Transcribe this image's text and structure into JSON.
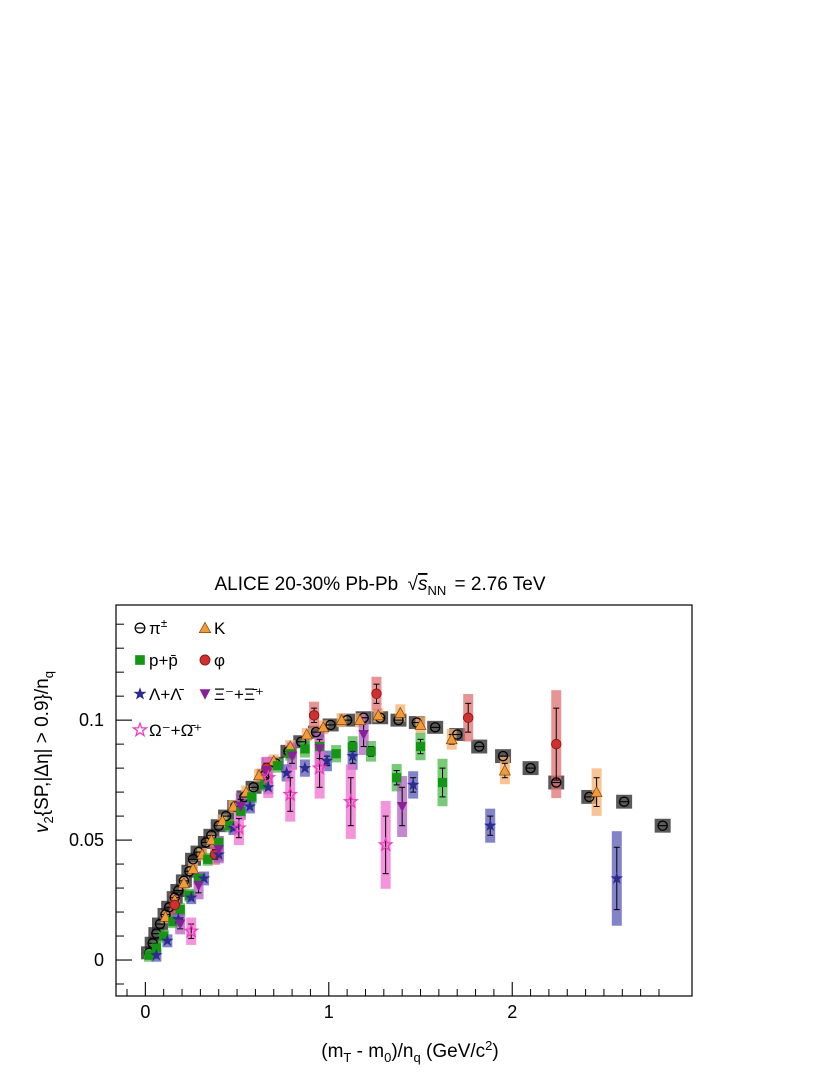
{
  "chart_data": {
    "type": "scatter",
    "title_parts": {
      "prefix": "ALICE 20-30% Pb-Pb",
      "sqrt_var": "s",
      "sqrt_sub": "NN",
      "suffix": "= 2.76 TeV"
    },
    "xlabel_parts": {
      "a": "(m",
      "a_sub": "T",
      "b": " - m",
      "b_sub": "0",
      "c": ")/n",
      "c_sub": "q",
      "d": " (GeV/c",
      "d_sup": "2",
      "e": ")"
    },
    "ylabel_parts": {
      "a": "v",
      "a_sub": "2",
      "b": "{SP,|Δη| > 0.9}/n",
      "b_sub": "q"
    },
    "xlim": [
      -0.16,
      2.98
    ],
    "ylim": [
      -0.015,
      0.148
    ],
    "x_ticks": [
      0,
      1,
      2
    ],
    "x_tick_labels": [
      "0",
      "1",
      "2"
    ],
    "y_ticks": [
      0,
      0.05,
      0.1
    ],
    "y_tick_labels": [
      "0",
      "0.05",
      "0.1"
    ],
    "legend_position": "top-left",
    "series": [
      {
        "name": "π±",
        "label_main": "π",
        "label_sup": "±",
        "marker": "circle-open",
        "color": "#000000",
        "syst_color": "#222222",
        "points": [
          {
            "x": 0.02,
            "y": 0.003,
            "ey": 0.0005
          },
          {
            "x": 0.04,
            "y": 0.007,
            "ey": 0.0005
          },
          {
            "x": 0.06,
            "y": 0.011,
            "ey": 0.0005
          },
          {
            "x": 0.08,
            "y": 0.015,
            "ey": 0.0005
          },
          {
            "x": 0.11,
            "y": 0.019,
            "ey": 0.0005
          },
          {
            "x": 0.13,
            "y": 0.022,
            "ey": 0.0005
          },
          {
            "x": 0.16,
            "y": 0.026,
            "ey": 0.0005
          },
          {
            "x": 0.18,
            "y": 0.029,
            "ey": 0.0005
          },
          {
            "x": 0.21,
            "y": 0.033,
            "ey": 0.0005
          },
          {
            "x": 0.24,
            "y": 0.037,
            "ey": 0.0005
          },
          {
            "x": 0.26,
            "y": 0.042,
            "ey": 0.0005
          },
          {
            "x": 0.29,
            "y": 0.045,
            "ey": 0.0005
          },
          {
            "x": 0.33,
            "y": 0.049,
            "ey": 0.0005
          },
          {
            "x": 0.36,
            "y": 0.052,
            "ey": 0.0005
          },
          {
            "x": 0.4,
            "y": 0.056,
            "ey": 0.0005
          },
          {
            "x": 0.44,
            "y": 0.06,
            "ey": 0.0005
          },
          {
            "x": 0.49,
            "y": 0.064,
            "ey": 0.0005
          },
          {
            "x": 0.54,
            "y": 0.068,
            "ey": 0.0005
          },
          {
            "x": 0.59,
            "y": 0.072,
            "ey": 0.0005
          },
          {
            "x": 0.65,
            "y": 0.077,
            "ey": 0.0005
          },
          {
            "x": 0.71,
            "y": 0.082,
            "ey": 0.0005
          },
          {
            "x": 0.78,
            "y": 0.087,
            "ey": 0.0005
          },
          {
            "x": 0.85,
            "y": 0.091,
            "ey": 0.0005
          },
          {
            "x": 0.93,
            "y": 0.095,
            "ey": 0.0005
          },
          {
            "x": 1.01,
            "y": 0.098,
            "ey": 0.0005
          },
          {
            "x": 1.1,
            "y": 0.1,
            "ey": 0.0005
          },
          {
            "x": 1.19,
            "y": 0.101,
            "ey": 0.0005
          },
          {
            "x": 1.28,
            "y": 0.101,
            "ey": 0.0005
          },
          {
            "x": 1.38,
            "y": 0.1,
            "ey": 0.0005
          },
          {
            "x": 1.48,
            "y": 0.099,
            "ey": 0.0006
          },
          {
            "x": 1.58,
            "y": 0.097,
            "ey": 0.0006
          },
          {
            "x": 1.7,
            "y": 0.094,
            "ey": 0.0008
          },
          {
            "x": 1.82,
            "y": 0.089,
            "ey": 0.001
          },
          {
            "x": 1.95,
            "y": 0.085,
            "ey": 0.001
          },
          {
            "x": 2.1,
            "y": 0.08,
            "ey": 0.001
          },
          {
            "x": 2.24,
            "y": 0.074,
            "ey": 0.001
          },
          {
            "x": 2.42,
            "y": 0.068,
            "ey": 0.001
          },
          {
            "x": 2.61,
            "y": 0.066,
            "ey": 0.001
          },
          {
            "x": 2.82,
            "y": 0.056,
            "ey": 0.001
          }
        ]
      },
      {
        "name": "K",
        "label_main": "K",
        "label_sup": "",
        "marker": "triangle",
        "color": "#f29a3a",
        "syst_color": "#f5b070",
        "points": [
          {
            "x": 0.11,
            "y": 0.018,
            "ey": 0.0006
          },
          {
            "x": 0.16,
            "y": 0.025,
            "ey": 0.0006
          },
          {
            "x": 0.21,
            "y": 0.032,
            "ey": 0.0006
          },
          {
            "x": 0.26,
            "y": 0.038,
            "ey": 0.0006
          },
          {
            "x": 0.31,
            "y": 0.044,
            "ey": 0.0006
          },
          {
            "x": 0.36,
            "y": 0.05,
            "ey": 0.0006
          },
          {
            "x": 0.42,
            "y": 0.058,
            "ey": 0.0006
          },
          {
            "x": 0.48,
            "y": 0.064,
            "ey": 0.0006
          },
          {
            "x": 0.55,
            "y": 0.07,
            "ey": 0.0006
          },
          {
            "x": 0.62,
            "y": 0.077,
            "ey": 0.0006
          },
          {
            "x": 0.7,
            "y": 0.083,
            "ey": 0.0006
          },
          {
            "x": 0.79,
            "y": 0.089,
            "ey": 0.0006
          },
          {
            "x": 0.88,
            "y": 0.094,
            "ey": 0.0008
          },
          {
            "x": 0.97,
            "y": 0.097,
            "ey": 0.001
          },
          {
            "x": 1.07,
            "y": 0.1,
            "ey": 0.001
          },
          {
            "x": 1.17,
            "y": 0.1,
            "ey": 0.001
          },
          {
            "x": 1.27,
            "y": 0.102,
            "ey": 0.001
          },
          {
            "x": 1.39,
            "y": 0.103,
            "ey": 0.0015
          },
          {
            "x": 1.5,
            "y": 0.098,
            "ey": 0.0015
          },
          {
            "x": 1.67,
            "y": 0.092,
            "ey": 0.002
          },
          {
            "x": 1.96,
            "y": 0.079,
            "ey": 0.003
          },
          {
            "x": 2.46,
            "y": 0.07,
            "ey": 0.006
          }
        ]
      },
      {
        "name": "p+p̄",
        "label_main": "p+p̄",
        "label_sup": "",
        "marker": "square",
        "color": "#149614",
        "syst_color": "#4bb84b",
        "points": [
          {
            "x": 0.02,
            "y": 0.002,
            "ey": 0.0005
          },
          {
            "x": 0.06,
            "y": 0.005,
            "ey": 0.0005
          },
          {
            "x": 0.1,
            "y": 0.01,
            "ey": 0.0005
          },
          {
            "x": 0.15,
            "y": 0.016,
            "ey": 0.0005
          },
          {
            "x": 0.19,
            "y": 0.021,
            "ey": 0.0006
          },
          {
            "x": 0.24,
            "y": 0.027,
            "ey": 0.0006
          },
          {
            "x": 0.29,
            "y": 0.034,
            "ey": 0.0006
          },
          {
            "x": 0.34,
            "y": 0.042,
            "ey": 0.0006
          },
          {
            "x": 0.4,
            "y": 0.049,
            "ey": 0.0006
          },
          {
            "x": 0.46,
            "y": 0.056,
            "ey": 0.0006
          },
          {
            "x": 0.52,
            "y": 0.062,
            "ey": 0.0006
          },
          {
            "x": 0.58,
            "y": 0.068,
            "ey": 0.0008
          },
          {
            "x": 0.65,
            "y": 0.073,
            "ey": 0.0008
          },
          {
            "x": 0.72,
            "y": 0.081,
            "ey": 0.001
          },
          {
            "x": 0.79,
            "y": 0.086,
            "ey": 0.001
          },
          {
            "x": 0.87,
            "y": 0.088,
            "ey": 0.0015
          },
          {
            "x": 0.95,
            "y": 0.089,
            "ey": 0.0015
          },
          {
            "x": 1.04,
            "y": 0.086,
            "ey": 0.0015
          },
          {
            "x": 1.13,
            "y": 0.089,
            "ey": 0.002
          },
          {
            "x": 1.23,
            "y": 0.087,
            "ey": 0.002
          },
          {
            "x": 1.37,
            "y": 0.076,
            "ey": 0.003
          },
          {
            "x": 1.5,
            "y": 0.089,
            "ey": 0.003
          },
          {
            "x": 1.62,
            "y": 0.074,
            "ey": 0.006
          }
        ]
      },
      {
        "name": "φ",
        "label_main": "φ",
        "label_sup": "",
        "marker": "circle",
        "color": "#d03030",
        "syst_color": "#e07070",
        "points": [
          {
            "x": 0.16,
            "y": 0.023,
            "ey": 0.002
          },
          {
            "x": 0.38,
            "y": 0.044,
            "ey": 0.002
          },
          {
            "x": 0.66,
            "y": 0.08,
            "ey": 0.002
          },
          {
            "x": 0.92,
            "y": 0.102,
            "ey": 0.003
          },
          {
            "x": 1.26,
            "y": 0.111,
            "ey": 0.004
          },
          {
            "x": 1.76,
            "y": 0.101,
            "ey": 0.006
          },
          {
            "x": 2.24,
            "y": 0.09,
            "ey": 0.015
          }
        ]
      },
      {
        "name": "Λ+Λ̄",
        "label_main": "Λ+Λ̄",
        "label_sup": "",
        "marker": "star",
        "color": "#2b2b90",
        "syst_color": "#5a5ab8",
        "points": [
          {
            "x": 0.06,
            "y": 0.002,
            "ey": 0.0008
          },
          {
            "x": 0.12,
            "y": 0.008,
            "ey": 0.0008
          },
          {
            "x": 0.18,
            "y": 0.017,
            "ey": 0.0008
          },
          {
            "x": 0.25,
            "y": 0.026,
            "ey": 0.0008
          },
          {
            "x": 0.32,
            "y": 0.034,
            "ey": 0.001
          },
          {
            "x": 0.4,
            "y": 0.044,
            "ey": 0.001
          },
          {
            "x": 0.48,
            "y": 0.055,
            "ey": 0.001
          },
          {
            "x": 0.57,
            "y": 0.064,
            "ey": 0.001
          },
          {
            "x": 0.67,
            "y": 0.072,
            "ey": 0.001
          },
          {
            "x": 0.77,
            "y": 0.078,
            "ey": 0.0015
          },
          {
            "x": 0.87,
            "y": 0.08,
            "ey": 0.0015
          },
          {
            "x": 0.99,
            "y": 0.083,
            "ey": 0.002
          },
          {
            "x": 1.13,
            "y": 0.085,
            "ey": 0.003
          },
          {
            "x": 1.46,
            "y": 0.073,
            "ey": 0.003
          },
          {
            "x": 1.88,
            "y": 0.056,
            "ey": 0.004
          },
          {
            "x": 2.57,
            "y": 0.034,
            "ey": 0.013
          }
        ]
      },
      {
        "name": "Ξ⁻+Ξ̄⁺",
        "label_main": "Ξ⁻+Ξ̄⁺",
        "label_sup": "",
        "marker": "triangle-down",
        "color": "#8a1f9a",
        "syst_color": "#b060c0",
        "points": [
          {
            "x": 0.19,
            "y": 0.015,
            "ey": 0.002
          },
          {
            "x": 0.29,
            "y": 0.031,
            "ey": 0.003
          },
          {
            "x": 0.4,
            "y": 0.046,
            "ey": 0.003
          },
          {
            "x": 0.52,
            "y": 0.064,
            "ey": 0.003
          },
          {
            "x": 0.66,
            "y": 0.079,
            "ey": 0.003
          },
          {
            "x": 0.8,
            "y": 0.085,
            "ey": 0.003
          },
          {
            "x": 0.95,
            "y": 0.088,
            "ey": 0.004
          },
          {
            "x": 1.19,
            "y": 0.094,
            "ey": 0.005
          },
          {
            "x": 1.4,
            "y": 0.064,
            "ey": 0.008
          }
        ]
      },
      {
        "name": "Ω⁻+Ω̄⁺",
        "label_main": "Ω⁻+Ω̄⁺",
        "label_sup": "",
        "marker": "star-open",
        "color": "#f03cc0",
        "syst_color": "#f070d0",
        "points": [
          {
            "x": 0.25,
            "y": 0.012,
            "ey": 0.003
          },
          {
            "x": 0.51,
            "y": 0.055,
            "ey": 0.004
          },
          {
            "x": 0.67,
            "y": 0.076,
            "ey": 0.005
          },
          {
            "x": 0.79,
            "y": 0.069,
            "ey": 0.007
          },
          {
            "x": 0.95,
            "y": 0.08,
            "ey": 0.008
          },
          {
            "x": 1.12,
            "y": 0.066,
            "ey": 0.01
          },
          {
            "x": 1.31,
            "y": 0.048,
            "ey": 0.012
          }
        ]
      }
    ]
  }
}
